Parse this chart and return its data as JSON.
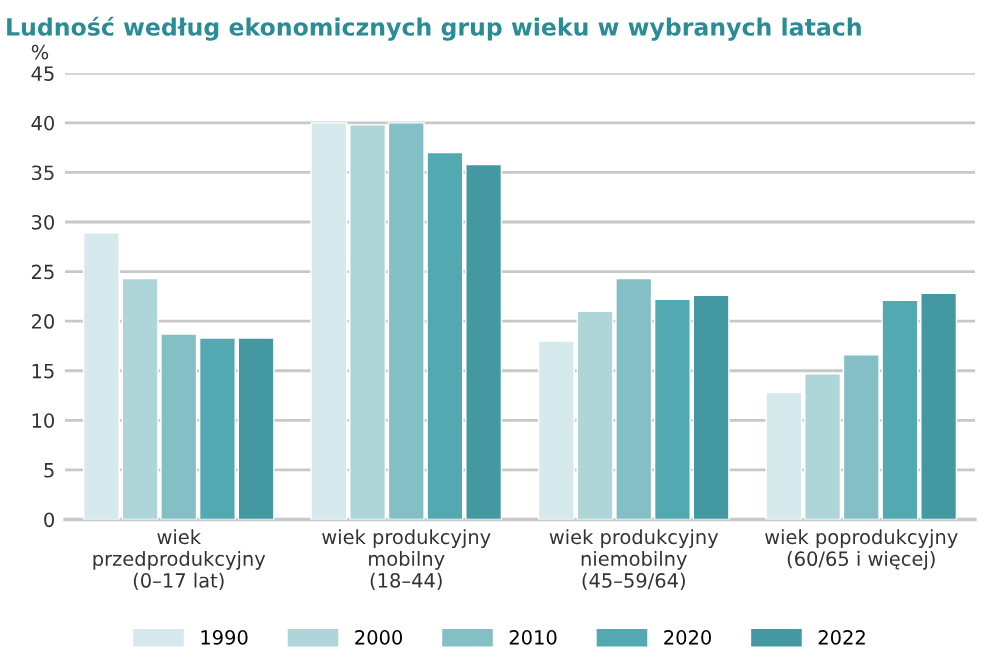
{
  "chart_data": {
    "type": "bar",
    "title": "Ludność według ekonomicznych grup wieku w wybranych latach",
    "ylabel": "%",
    "categories": [
      "wiek\nprzedprodukcyjny\n(0–17 lat)",
      "wiek produkcyjny\nmobilny\n(18–44)",
      "wiek produkcyjny\nniemobilny\n(45–59/64)",
      "wiek poprodukcyjny\n(60/65 i więcej)"
    ],
    "series": [
      {
        "name": "1990",
        "color": "#d6e9ec",
        "values": [
          28.9,
          40.0,
          18.0,
          12.8
        ]
      },
      {
        "name": "2000",
        "color": "#aed6d9",
        "values": [
          24.3,
          39.8,
          21.0,
          14.7
        ]
      },
      {
        "name": "2010",
        "color": "#84bfc5",
        "values": [
          18.7,
          40.0,
          24.3,
          16.6
        ]
      },
      {
        "name": "2020",
        "color": "#52a9b2",
        "values": [
          18.3,
          37.0,
          22.2,
          22.1
        ]
      },
      {
        "name": "2022",
        "color": "#4498a2",
        "values": [
          18.3,
          35.8,
          22.6,
          22.8
        ]
      }
    ],
    "ylim": [
      0,
      45
    ],
    "yticks": [
      0,
      5,
      10,
      15,
      20,
      25,
      30,
      35,
      40,
      45
    ],
    "grid": "y",
    "legend": "bottom"
  }
}
